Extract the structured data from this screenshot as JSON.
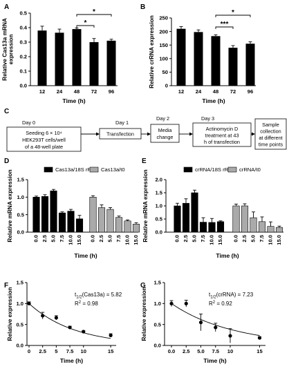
{
  "figure": {
    "panels": {
      "A": "A",
      "B": "B",
      "C": "C",
      "D": "D",
      "E": "E",
      "F": "F",
      "G": "G"
    },
    "flow": {
      "days": [
        "Day 0",
        "Day 1",
        "Day 2",
        "Day 3"
      ],
      "steps": [
        [
          "Seeding 6 × 10⁴",
          "HEK293T cells/well",
          "of a 48-well plate"
        ],
        [
          "Transfection"
        ],
        [
          "Media",
          "change"
        ],
        [
          "Actinomycin D",
          "treatment at 43",
          "h of transfection"
        ],
        [
          "Sample",
          "collection",
          "at different",
          "time points"
        ]
      ]
    }
  },
  "chart_data": [
    {
      "panel": "A",
      "type": "bar",
      "categories": [
        "12",
        "24",
        "48",
        "72",
        "96"
      ],
      "values": [
        0.38,
        0.365,
        0.39,
        0.3,
        0.31
      ],
      "errors": [
        0.03,
        0.025,
        0.008,
        0.025,
        0.01
      ],
      "xlabel": "Time (h)",
      "ylabel": "Relative Cas13a mRNA\nexpression",
      "ylim": [
        0,
        0.5
      ],
      "yticks": [
        "0.0",
        "0.1",
        "0.2",
        "0.3",
        "0.4",
        "0.5"
      ],
      "significance": [
        "*",
        "*"
      ],
      "color": "#000000"
    },
    {
      "panel": "B",
      "type": "bar",
      "categories": [
        "12",
        "24",
        "48",
        "72",
        "96"
      ],
      "values": [
        210,
        198,
        183,
        140,
        155
      ],
      "errors": [
        8,
        8,
        5,
        8,
        7
      ],
      "xlabel": "Time (h)",
      "ylabel": "Relative crRNA expression",
      "ylim": [
        0,
        250
      ],
      "yticks": [
        "0",
        "50",
        "100",
        "150",
        "200",
        "250"
      ],
      "significance": [
        "***",
        "*"
      ],
      "color": "#000000"
    },
    {
      "panel": "D",
      "type": "bar",
      "categories": [
        "0.0",
        "2.5",
        "5.0",
        "7.5",
        "10.0",
        "15.0"
      ],
      "series": [
        {
          "name": "Cas13a/18S rRNA",
          "values": [
            1.0,
            1.02,
            1.18,
            0.55,
            0.6,
            0.38
          ],
          "errors": [
            0.03,
            0.05,
            0.04,
            0.03,
            0.05,
            0.1
          ],
          "color": "#000000"
        },
        {
          "name": "Cas13a/t0",
          "values": [
            1.0,
            0.7,
            0.65,
            0.42,
            0.32,
            0.23
          ],
          "errors": [
            0.04,
            0.08,
            0.05,
            0.04,
            0.03,
            0.04
          ],
          "color": "#aaaaaa"
        }
      ],
      "xlabel": "Time (h)",
      "ylabel": "Relative mRNA expression",
      "ylim": [
        0,
        1.5
      ],
      "yticks": [
        "0.0",
        "0.5",
        "1.0",
        "1.5"
      ]
    },
    {
      "panel": "E",
      "type": "bar",
      "categories": [
        "0.0",
        "2.5",
        "5.0",
        "7.5",
        "10.0",
        "15.0"
      ],
      "series": [
        {
          "name": "crRNA/18S rRNA",
          "values": [
            1.0,
            1.1,
            1.5,
            0.38,
            0.37,
            0.4
          ],
          "errors": [
            0.1,
            0.17,
            0.1,
            0.17,
            0.15,
            0.03
          ],
          "color": "#000000"
        },
        {
          "name": "crRNA/t0",
          "values": [
            1.0,
            1.0,
            0.55,
            0.4,
            0.22,
            0.18
          ],
          "errors": [
            0.07,
            0.08,
            0.22,
            0.18,
            0.17,
            0.05
          ],
          "color": "#aaaaaa"
        }
      ],
      "xlabel": "Time (h)",
      "ylabel": "Relative mRNA expression",
      "ylim": [
        0,
        2.0
      ],
      "yticks": [
        "0.0",
        "0.5",
        "1.0",
        "1.5",
        "2.0"
      ]
    },
    {
      "panel": "F",
      "type": "scatter",
      "x": [
        0,
        2.5,
        5,
        7.5,
        10,
        15
      ],
      "y": [
        1.0,
        0.71,
        0.66,
        0.43,
        0.33,
        0.24
      ],
      "errors": [
        0.04,
        0.08,
        0.05,
        0.03,
        0.02,
        0.04
      ],
      "fit_half_life": 5.82,
      "annotation": [
        "t",
        "1/2",
        "(Cas13a) = 5.82",
        "R",
        "2",
        " = 0.98"
      ],
      "xlabel": "Time (h)",
      "ylabel": "Relative expression",
      "xlim": [
        0,
        16
      ],
      "ylim": [
        0,
        1.5
      ],
      "xticks": [
        "0",
        "2.5",
        "5",
        "7.5",
        "10",
        "15"
      ],
      "yticks": [
        "0.0",
        "0.5",
        "1.0",
        "1.5"
      ]
    },
    {
      "panel": "G",
      "type": "scatter",
      "x": [
        0,
        2.5,
        5,
        7.5,
        10,
        15
      ],
      "y": [
        1.0,
        1.0,
        0.55,
        0.43,
        0.23,
        0.18
      ],
      "errors": [
        0.07,
        0.08,
        0.2,
        0.1,
        0.17,
        0.03
      ],
      "fit_half_life": 7.23,
      "annotation": [
        "t",
        "1/2",
        "(crRNA) = 7.23",
        "R",
        "2",
        " = 0.92"
      ],
      "xlabel": "Time (h)",
      "ylabel": "Relative expression",
      "xlim": [
        0,
        16
      ],
      "ylim": [
        0,
        1.5
      ],
      "xticks": [
        "0.0",
        "2.5",
        "5.0",
        "7.5",
        "10",
        "15"
      ],
      "yticks": [
        "0.0",
        "0.5",
        "1.0",
        "1.5"
      ]
    }
  ]
}
